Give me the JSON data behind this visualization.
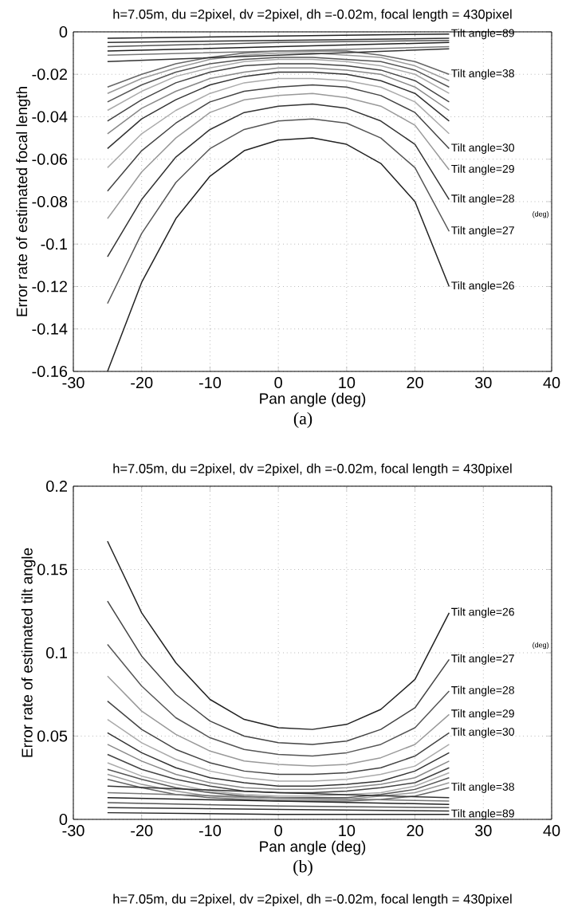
{
  "chart_data": [
    {
      "type": "line",
      "title": "h=7.05m, du =2pixel, dv =2pixel, dh =-0.02m, focal length = 430pixel",
      "xlabel": "Pan angle (deg)",
      "ylabel": "Error rate of estimated focal length",
      "x": [
        -25,
        -20,
        -15,
        -10,
        -5,
        0,
        5,
        10,
        15,
        20,
        25
      ],
      "xlim": [
        -30,
        40
      ],
      "xticks": [
        -30,
        -20,
        -10,
        0,
        10,
        20,
        30,
        40
      ],
      "ylim": [
        -0.16,
        0
      ],
      "yticks": [
        -0.16,
        -0.14,
        -0.12,
        -0.1,
        -0.08,
        -0.06,
        -0.04,
        -0.02,
        0
      ],
      "grid": true,
      "annotations": [
        "(a)",
        "(deg)"
      ],
      "series": [
        {
          "name": "Tilt angle=26",
          "color": "#222222",
          "values": [
            -0.16,
            -0.118,
            -0.088,
            -0.068,
            -0.056,
            -0.051,
            -0.05,
            -0.053,
            -0.062,
            -0.08,
            -0.12
          ]
        },
        {
          "name": "Tilt angle=27",
          "color": "#555555",
          "values": [
            -0.128,
            -0.095,
            -0.071,
            -0.055,
            -0.046,
            -0.042,
            -0.041,
            -0.043,
            -0.05,
            -0.064,
            -0.094
          ]
        },
        {
          "name": "Tilt angle=28",
          "color": "#333333",
          "values": [
            -0.106,
            -0.079,
            -0.059,
            -0.046,
            -0.038,
            -0.035,
            -0.034,
            -0.036,
            -0.042,
            -0.053,
            -0.079
          ]
        },
        {
          "name": "Tilt angle=29",
          "color": "#999999",
          "values": [
            -0.088,
            -0.066,
            -0.05,
            -0.038,
            -0.032,
            -0.03,
            -0.029,
            -0.031,
            -0.035,
            -0.044,
            -0.065
          ]
        },
        {
          "name": "Tilt angle=30",
          "color": "#444444",
          "values": [
            -0.075,
            -0.056,
            -0.043,
            -0.033,
            -0.028,
            -0.026,
            -0.025,
            -0.026,
            -0.03,
            -0.038,
            -0.055
          ]
        },
        {
          "color": "#aaaaaa",
          "values": [
            -0.064,
            -0.048,
            -0.037,
            -0.029,
            -0.024,
            -0.022,
            -0.022,
            -0.023,
            -0.026,
            -0.033,
            -0.048
          ]
        },
        {
          "color": "#333333",
          "values": [
            -0.055,
            -0.041,
            -0.032,
            -0.025,
            -0.021,
            -0.019,
            -0.019,
            -0.02,
            -0.023,
            -0.029,
            -0.042
          ]
        },
        {
          "color": "#888888",
          "values": [
            -0.048,
            -0.036,
            -0.028,
            -0.022,
            -0.019,
            -0.017,
            -0.017,
            -0.018,
            -0.02,
            -0.026,
            -0.037
          ]
        },
        {
          "color": "#444444",
          "values": [
            -0.042,
            -0.032,
            -0.024,
            -0.019,
            -0.016,
            -0.015,
            -0.015,
            -0.016,
            -0.018,
            -0.023,
            -0.033
          ]
        },
        {
          "color": "#aaaaaa",
          "values": [
            -0.037,
            -0.028,
            -0.021,
            -0.017,
            -0.014,
            -0.013,
            -0.013,
            -0.014,
            -0.016,
            -0.02,
            -0.029
          ]
        },
        {
          "color": "#555555",
          "values": [
            -0.033,
            -0.025,
            -0.019,
            -0.015,
            -0.013,
            -0.012,
            -0.012,
            -0.013,
            -0.014,
            -0.018,
            -0.026
          ]
        },
        {
          "color": "#999999",
          "values": [
            -0.029,
            -0.022,
            -0.017,
            -0.013,
            -0.011,
            -0.01,
            -0.01,
            -0.011,
            -0.012,
            -0.016,
            -0.023
          ]
        },
        {
          "name": "Tilt angle=38",
          "color": "#666666",
          "values": [
            -0.026,
            -0.02,
            -0.015,
            -0.012,
            -0.01,
            -0.009,
            -0.009,
            -0.009,
            -0.011,
            -0.014,
            -0.02
          ]
        },
        {
          "color": "#333333",
          "x": [
            -25,
            0,
            25
          ],
          "values": [
            -0.014,
            -0.011,
            -0.008
          ]
        },
        {
          "color": "#777777",
          "x": [
            -25,
            0,
            25
          ],
          "values": [
            -0.011,
            -0.009,
            -0.007
          ]
        },
        {
          "color": "#222222",
          "x": [
            -25,
            0,
            25
          ],
          "values": [
            -0.009,
            -0.007,
            -0.005
          ]
        },
        {
          "color": "#555555",
          "x": [
            -25,
            0,
            25
          ],
          "values": [
            -0.007,
            -0.005,
            -0.004
          ]
        },
        {
          "color": "#333333",
          "x": [
            -25,
            0,
            25
          ],
          "values": [
            -0.005,
            -0.004,
            -0.003
          ]
        },
        {
          "name": "Tilt angle=89",
          "color": "#222222",
          "x": [
            -25,
            0,
            25
          ],
          "values": [
            -0.003,
            -0.002,
            -0.001
          ]
        }
      ]
    },
    {
      "type": "line",
      "title": "h=7.05m, du =2pixel, dv =2pixel, dh =-0.02m, focal length = 430pixel",
      "xlabel": "Pan angle (deg)",
      "ylabel": "Error rate of estimated tilt angle",
      "x": [
        -25,
        -20,
        -15,
        -10,
        -5,
        0,
        5,
        10,
        15,
        20,
        25
      ],
      "xlim": [
        -30,
        40
      ],
      "xticks": [
        -30,
        -20,
        -10,
        0,
        10,
        20,
        30,
        40
      ],
      "ylim": [
        0,
        0.2
      ],
      "yticks": [
        0,
        0.05,
        0.1,
        0.15,
        0.2
      ],
      "grid": true,
      "annotations": [
        "(b)",
        "(deg)"
      ],
      "series": [
        {
          "name": "Tilt angle=26",
          "color": "#222222",
          "values": [
            0.167,
            0.124,
            0.094,
            0.072,
            0.06,
            0.055,
            0.054,
            0.057,
            0.066,
            0.084,
            0.124
          ]
        },
        {
          "name": "Tilt angle=27",
          "color": "#444444",
          "values": [
            0.131,
            0.098,
            0.075,
            0.059,
            0.05,
            0.046,
            0.045,
            0.047,
            0.054,
            0.067,
            0.096
          ]
        },
        {
          "name": "Tilt angle=28",
          "color": "#555555",
          "values": [
            0.105,
            0.08,
            0.061,
            0.049,
            0.042,
            0.039,
            0.038,
            0.04,
            0.045,
            0.055,
            0.077
          ]
        },
        {
          "name": "Tilt angle=29",
          "color": "#999999",
          "values": [
            0.086,
            0.065,
            0.051,
            0.041,
            0.035,
            0.033,
            0.032,
            0.033,
            0.037,
            0.045,
            0.063
          ]
        },
        {
          "name": "Tilt angle=30",
          "color": "#444444",
          "values": [
            0.071,
            0.054,
            0.042,
            0.034,
            0.029,
            0.027,
            0.027,
            0.028,
            0.031,
            0.038,
            0.052
          ]
        },
        {
          "color": "#aaaaaa",
          "values": [
            0.06,
            0.046,
            0.036,
            0.029,
            0.025,
            0.023,
            0.023,
            0.024,
            0.027,
            0.032,
            0.045
          ]
        },
        {
          "color": "#333333",
          "values": [
            0.052,
            0.04,
            0.031,
            0.025,
            0.022,
            0.02,
            0.02,
            0.021,
            0.023,
            0.029,
            0.04
          ]
        },
        {
          "color": "#888888",
          "values": [
            0.045,
            0.035,
            0.027,
            0.022,
            0.019,
            0.018,
            0.018,
            0.019,
            0.021,
            0.025,
            0.035
          ]
        },
        {
          "color": "#444444",
          "values": [
            0.039,
            0.03,
            0.024,
            0.02,
            0.017,
            0.016,
            0.016,
            0.017,
            0.019,
            0.022,
            0.031
          ]
        },
        {
          "color": "#aaaaaa",
          "values": [
            0.034,
            0.026,
            0.021,
            0.017,
            0.015,
            0.014,
            0.014,
            0.015,
            0.016,
            0.02,
            0.028
          ]
        },
        {
          "color": "#555555",
          "values": [
            0.03,
            0.024,
            0.019,
            0.016,
            0.014,
            0.013,
            0.013,
            0.013,
            0.015,
            0.018,
            0.025
          ]
        },
        {
          "color": "#999999",
          "values": [
            0.027,
            0.021,
            0.017,
            0.014,
            0.013,
            0.012,
            0.012,
            0.012,
            0.014,
            0.016,
            0.022
          ]
        },
        {
          "name": "Tilt angle=38",
          "color": "#666666",
          "values": [
            0.024,
            0.019,
            0.015,
            0.013,
            0.012,
            0.011,
            0.011,
            0.011,
            0.012,
            0.014,
            0.019
          ]
        },
        {
          "color": "#333333",
          "x": [
            -25,
            0,
            25
          ],
          "values": [
            0.02,
            0.016,
            0.013
          ]
        },
        {
          "color": "#777777",
          "x": [
            -25,
            0,
            25
          ],
          "values": [
            0.016,
            0.013,
            0.011
          ]
        },
        {
          "color": "#222222",
          "x": [
            -25,
            0,
            25
          ],
          "values": [
            0.013,
            0.011,
            0.009
          ]
        },
        {
          "color": "#555555",
          "x": [
            -25,
            0,
            25
          ],
          "values": [
            0.01,
            0.008,
            0.007
          ]
        },
        {
          "color": "#333333",
          "x": [
            -25,
            0,
            25
          ],
          "values": [
            0.007,
            0.006,
            0.005
          ]
        },
        {
          "name": "Tilt angle=89",
          "color": "#222222",
          "x": [
            -25,
            0,
            25
          ],
          "values": [
            0.004,
            0.003,
            0.003
          ]
        }
      ]
    },
    {
      "type": "other",
      "title": "h=7.05m, du =2pixel, dv =2pixel, dh =-0.02m, focal length = 430pixel"
    }
  ]
}
